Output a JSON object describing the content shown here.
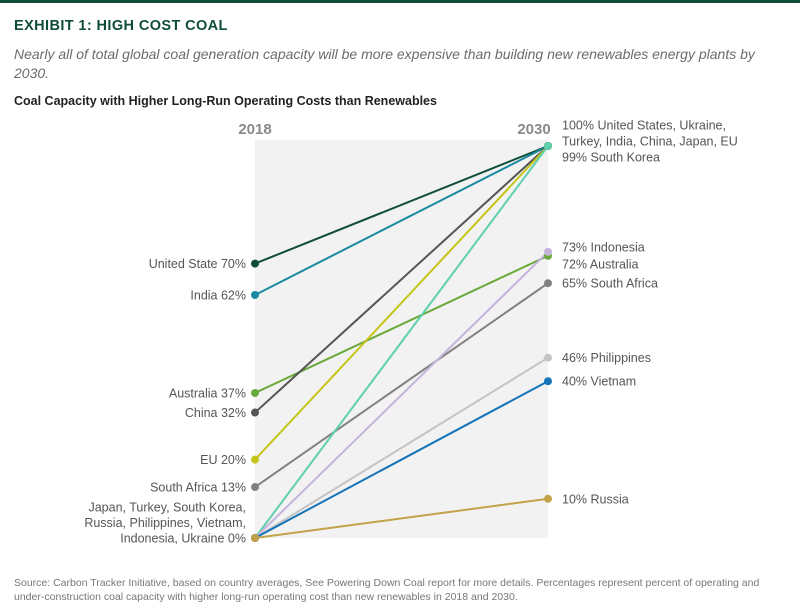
{
  "header": {
    "exhibit_title": "EXHIBIT 1: HIGH COST COAL",
    "subtitle": "Nearly all of total global coal generation capacity will be more expensive than building new renewables energy plants by 2030.",
    "chart_title": "Coal Capacity with Higher Long-Run Operating Costs than Renewables"
  },
  "footnote": "Source: Carbon Tracker Initiative, based on country averages, See Powering Down Coal report for more details. Percentages represent percent of operating and under-construction coal capacity with higher long-run operating cost than new renewables in 2018 and 2030.",
  "chart_data": {
    "type": "line",
    "title": "Coal Capacity with Higher Long-Run Operating Costs than Renewables",
    "categories": [
      "2018",
      "2030"
    ],
    "ylim": [
      0,
      100
    ],
    "series": [
      {
        "name": "United States",
        "values": [
          70,
          100
        ],
        "color": "#0f4d3a"
      },
      {
        "name": "India",
        "values": [
          62,
          100
        ],
        "color": "#1a8aa0"
      },
      {
        "name": "Australia",
        "values": [
          37,
          72
        ],
        "color": "#6aaa3a"
      },
      {
        "name": "China",
        "values": [
          32,
          100
        ],
        "color": "#555555"
      },
      {
        "name": "EU",
        "values": [
          20,
          100
        ],
        "color": "#c5c519"
      },
      {
        "name": "South Africa",
        "values": [
          13,
          65
        ],
        "color": "#808080"
      },
      {
        "name": "Japan",
        "values": [
          0,
          100
        ],
        "color": "#5fcfae"
      },
      {
        "name": "Indonesia",
        "values": [
          0,
          73
        ],
        "color": "#c6b3dd"
      },
      {
        "name": "Philippines",
        "values": [
          0,
          46
        ],
        "color": "#c4c4c4"
      },
      {
        "name": "Vietnam",
        "values": [
          0,
          40
        ],
        "color": "#1673b8"
      },
      {
        "name": "Russia",
        "values": [
          0,
          10
        ],
        "color": "#c3a24a"
      }
    ],
    "left_labels": [
      {
        "text": "United State 70%",
        "value": 70
      },
      {
        "text": "India 62%",
        "value": 62
      },
      {
        "text": "Australia 37%",
        "value": 37
      },
      {
        "text": "China 32%",
        "value": 32
      },
      {
        "text": "EU 20%",
        "value": 20
      },
      {
        "text": "South Africa 13%",
        "value": 13
      },
      {
        "text": [
          "Japan, Turkey, South Korea,",
          "Russia, Philippines, Vietnam,",
          "Indonesia, Ukraine 0%"
        ],
        "value": 0
      }
    ],
    "right_labels": [
      {
        "text": [
          "100% United States, Ukraine,",
          "Turkey, India, China, Japan, EU",
          "99% South Korea"
        ],
        "value": 100
      },
      {
        "text": [
          "65% South Africa"
        ],
        "value": 65
      },
      {
        "text": [
          "73% Indonesia"
        ],
        "value": 73
      },
      {
        "text": [
          "72% Australia"
        ],
        "value": 72
      },
      {
        "text": [
          "46% Philippines"
        ],
        "value": 46
      },
      {
        "text": [
          "40% Vietnam"
        ],
        "value": 40
      },
      {
        "text": [
          "10% Russia"
        ],
        "value": 10
      }
    ]
  }
}
